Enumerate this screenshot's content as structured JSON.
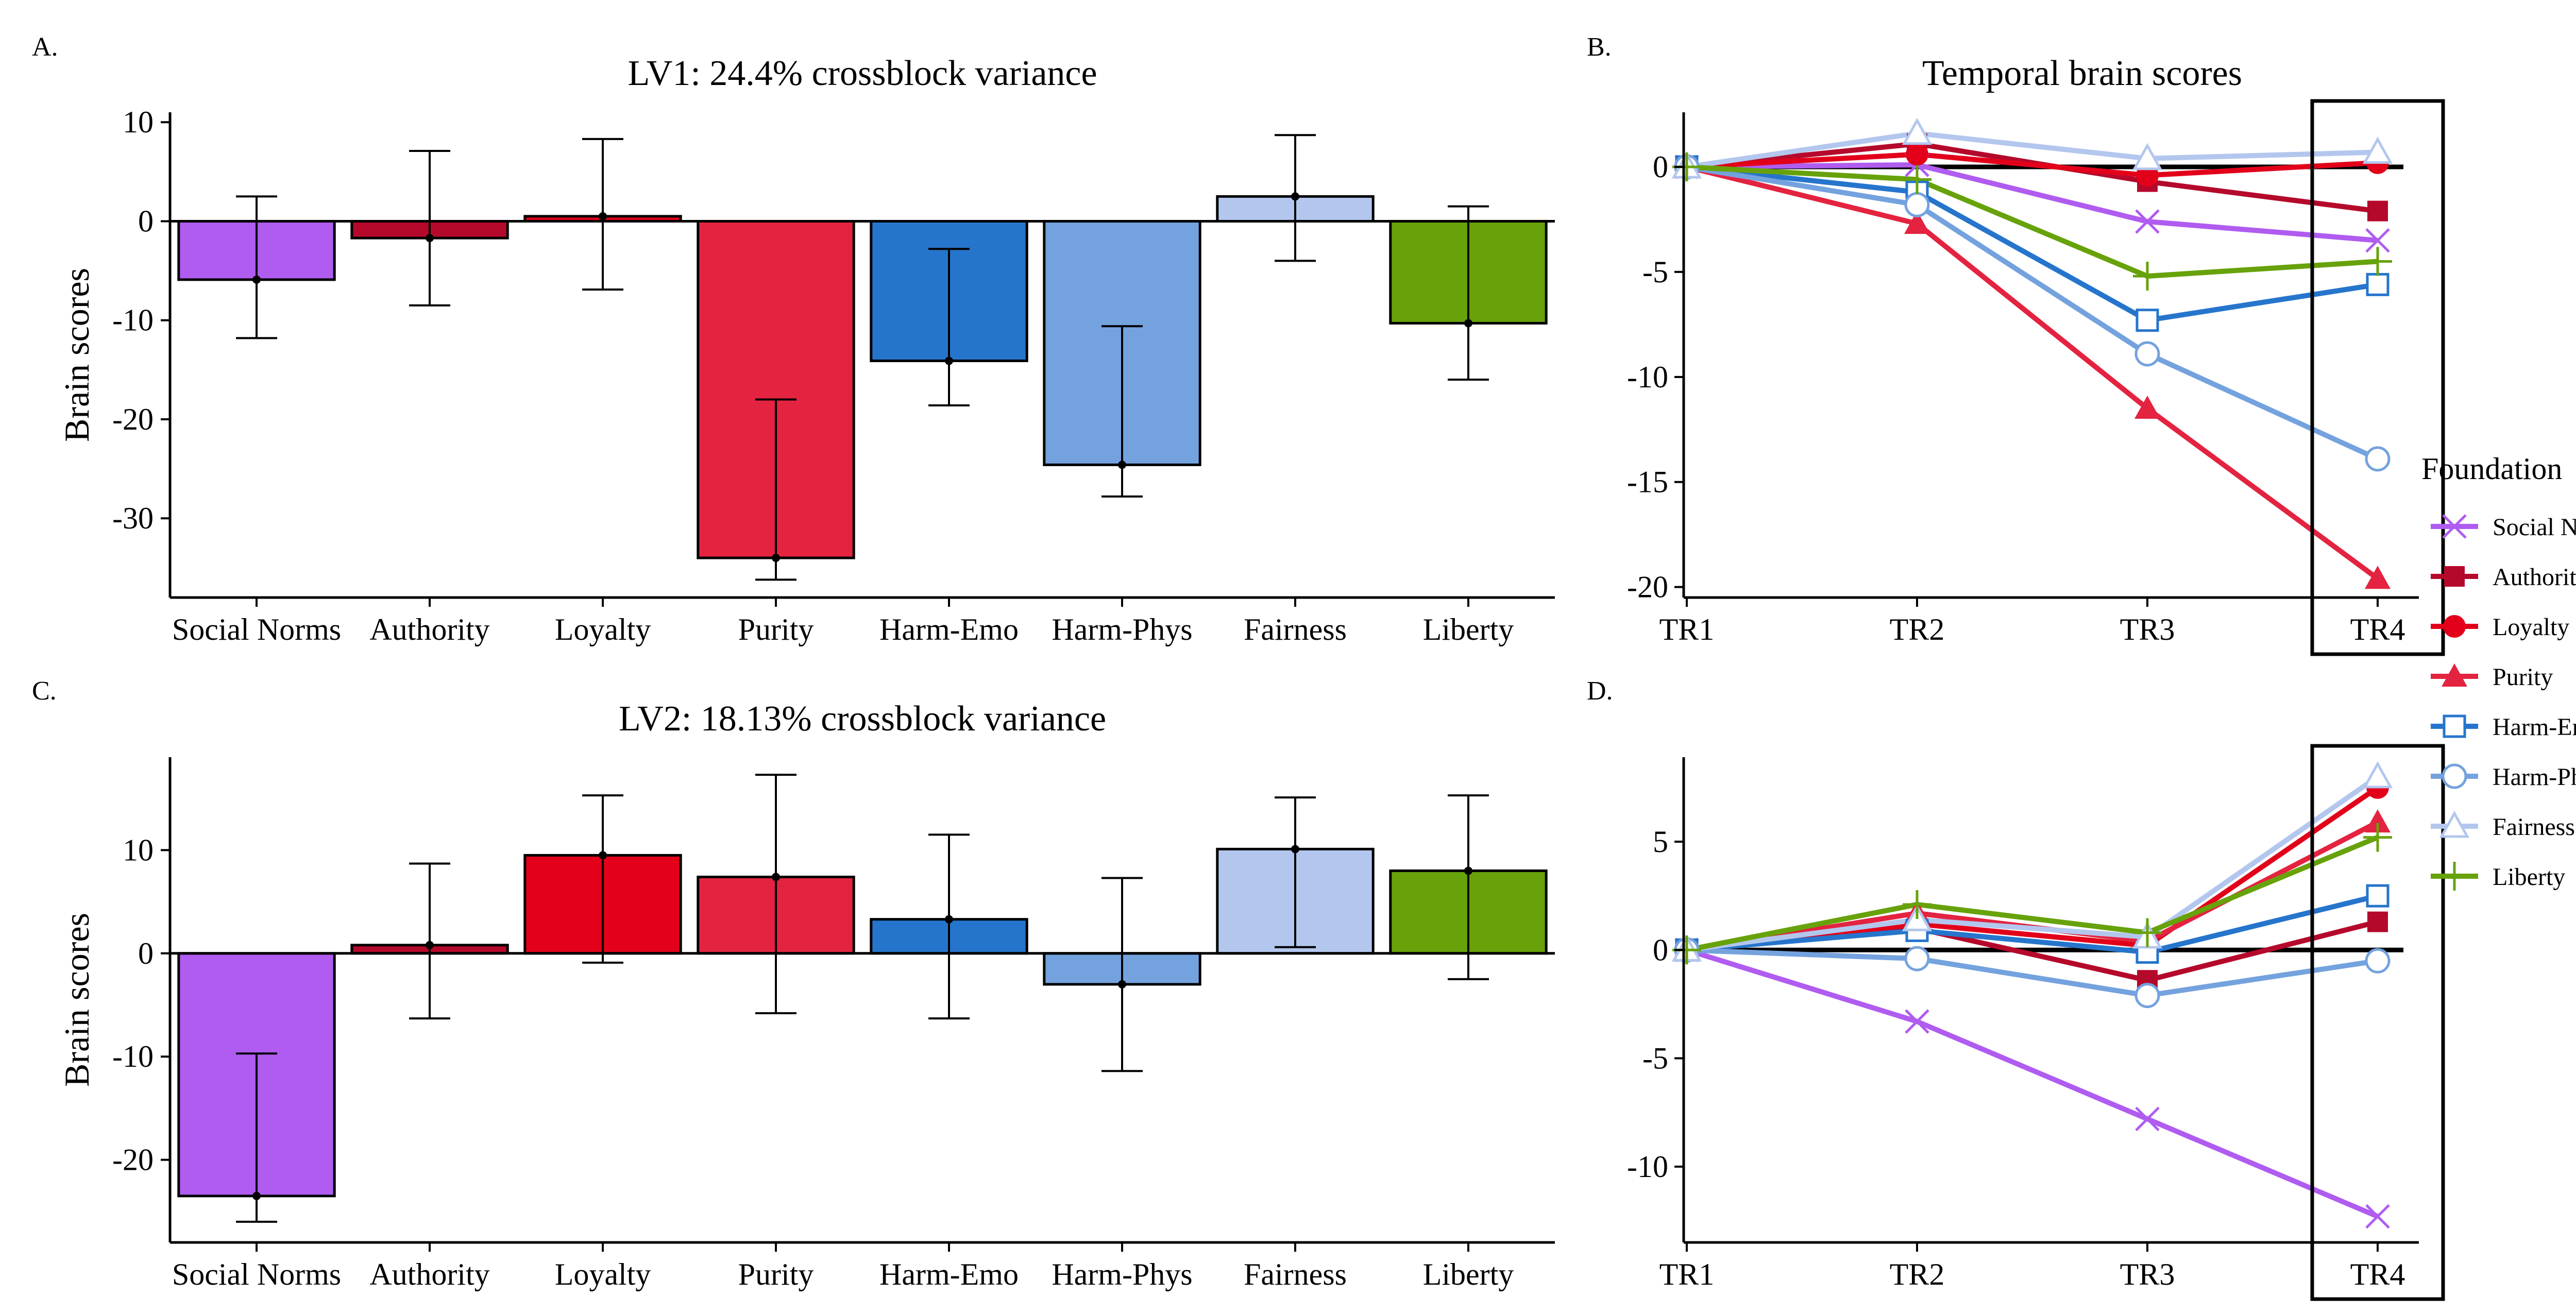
{
  "panels": {
    "a": "A.",
    "b": "B.",
    "c": "C.",
    "d": "D."
  },
  "legend": {
    "title": "Foundation",
    "items": [
      {
        "key": "social_norms",
        "label": "Social Norms",
        "color": "#B05CF0",
        "marker": "x"
      },
      {
        "key": "authority",
        "label": "Authority",
        "color": "#B5092B",
        "marker": "square"
      },
      {
        "key": "loyalty",
        "label": "Loyalty",
        "color": "#E2001A",
        "marker": "circle"
      },
      {
        "key": "purity",
        "label": "Purity",
        "color": "#E32340",
        "marker": "triangle"
      },
      {
        "key": "harm_emo",
        "label": "Harm-Emo",
        "color": "#2675CC",
        "marker": "square-open"
      },
      {
        "key": "harm_phys",
        "label": "Harm-Phys",
        "color": "#74A2DE",
        "marker": "circle-open"
      },
      {
        "key": "fairness",
        "label": "Fairness",
        "color": "#B3C7EE",
        "marker": "triangle-open"
      },
      {
        "key": "liberty",
        "label": "Liberty",
        "color": "#67A20A",
        "marker": "plus"
      }
    ]
  },
  "chart_data": [
    {
      "id": "A",
      "type": "bar",
      "title": "LV1: 24.4% crossblock variance",
      "xlabel": "",
      "ylabel": "Brain scores",
      "ylim": [
        -38,
        11
      ],
      "yticks": [
        -30,
        -20,
        -10,
        0,
        10
      ],
      "categories": [
        "Social Norms",
        "Authority",
        "Loyalty",
        "Purity",
        "Harm-Emo",
        "Harm-Phys",
        "Fairness",
        "Liberty"
      ],
      "colors": [
        "#B05CF0",
        "#B5092B",
        "#E2001A",
        "#E32340",
        "#2675CC",
        "#74A2DE",
        "#B3C7EE",
        "#67A20A"
      ],
      "values": [
        -5.9,
        -1.7,
        0.5,
        -34.0,
        -14.1,
        -24.6,
        2.5,
        -10.3
      ],
      "error_low": [
        -11.8,
        -8.5,
        -6.9,
        -36.2,
        -18.6,
        -27.8,
        -4.0,
        -16.0
      ],
      "error_high": [
        2.5,
        7.1,
        8.3,
        -18.0,
        -2.8,
        -10.6,
        8.7,
        1.5
      ]
    },
    {
      "id": "B",
      "type": "line",
      "title": "Temporal brain scores",
      "xlabel": "",
      "ylabel": "",
      "x": [
        "TR1",
        "TR2",
        "TR3",
        "TR4"
      ],
      "ylim": [
        -20.5,
        2.6
      ],
      "yticks": [
        -20,
        -15,
        -10,
        -5,
        0
      ],
      "highlight_category": "TR4",
      "series": [
        {
          "name": "Social Norms",
          "values": [
            0,
            0.1,
            -2.6,
            -3.5
          ]
        },
        {
          "name": "Authority",
          "values": [
            0,
            1.1,
            -0.7,
            -2.1
          ]
        },
        {
          "name": "Loyalty",
          "values": [
            0,
            0.6,
            -0.4,
            0.2
          ]
        },
        {
          "name": "Purity",
          "values": [
            0,
            -2.7,
            -11.5,
            -19.6
          ]
        },
        {
          "name": "Harm-Emo",
          "values": [
            0,
            -1.2,
            -7.3,
            -5.6
          ]
        },
        {
          "name": "Harm-Phys",
          "values": [
            0,
            -1.8,
            -8.9,
            -13.9
          ]
        },
        {
          "name": "Fairness",
          "values": [
            0,
            1.6,
            0.4,
            0.7
          ]
        },
        {
          "name": "Liberty",
          "values": [
            0,
            -0.6,
            -5.2,
            -4.5
          ]
        }
      ]
    },
    {
      "id": "C",
      "type": "bar",
      "title": "LV2: 18.13% crossblock variance",
      "xlabel": "",
      "ylabel": "Brain scores",
      "ylim": [
        -28,
        19
      ],
      "yticks": [
        -20,
        -10,
        0,
        10
      ],
      "categories": [
        "Social Norms",
        "Authority",
        "Loyalty",
        "Purity",
        "Harm-Emo",
        "Harm-Phys",
        "Fairness",
        "Liberty"
      ],
      "colors": [
        "#B05CF0",
        "#B5092B",
        "#E2001A",
        "#E32340",
        "#2675CC",
        "#74A2DE",
        "#B3C7EE",
        "#67A20A"
      ],
      "values": [
        -23.5,
        0.8,
        9.5,
        7.4,
        3.3,
        -3.0,
        10.1,
        8.0
      ],
      "error_low": [
        -26.0,
        -6.3,
        -0.9,
        -5.8,
        -6.3,
        -11.4,
        0.6,
        -2.5
      ],
      "error_high": [
        -9.7,
        8.7,
        15.3,
        17.3,
        11.5,
        7.3,
        15.1,
        15.3
      ]
    },
    {
      "id": "D",
      "type": "line",
      "title": "",
      "xlabel": "",
      "ylabel": "",
      "x": [
        "TR1",
        "TR2",
        "TR3",
        "TR4"
      ],
      "ylim": [
        -13.5,
        8.9
      ],
      "yticks": [
        -10,
        -5,
        0,
        5
      ],
      "highlight_category": "TR4",
      "series": [
        {
          "name": "Social Norms",
          "values": [
            0,
            -3.3,
            -7.8,
            -12.3
          ]
        },
        {
          "name": "Authority",
          "values": [
            0,
            1.0,
            -1.4,
            1.3
          ]
        },
        {
          "name": "Loyalty",
          "values": [
            0,
            1.2,
            0.2,
            7.5
          ]
        },
        {
          "name": "Purity",
          "values": [
            0,
            1.7,
            0.4,
            5.9
          ]
        },
        {
          "name": "Harm-Emo",
          "values": [
            0,
            0.9,
            -0.1,
            2.5
          ]
        },
        {
          "name": "Harm-Phys",
          "values": [
            0,
            -0.4,
            -2.1,
            -0.5
          ]
        },
        {
          "name": "Fairness",
          "values": [
            0,
            1.4,
            0.6,
            8.0
          ]
        },
        {
          "name": "Liberty",
          "values": [
            0,
            2.1,
            0.8,
            5.2
          ]
        }
      ]
    }
  ]
}
